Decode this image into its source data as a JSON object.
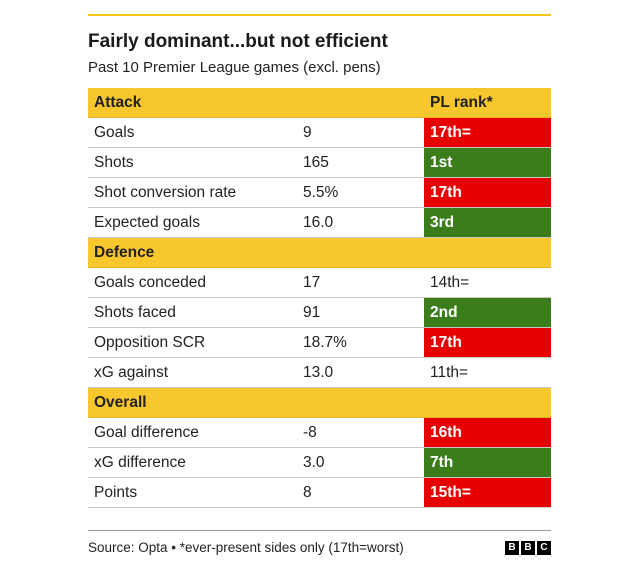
{
  "title": "Fairly dominant...but not efficient",
  "subtitle": "Past 10 Premier League games (excl. pens)",
  "header": {
    "label": "Attack",
    "rank_label": "PL rank*"
  },
  "sections": [
    {
      "name": "Attack",
      "rows": [
        {
          "metric": "Goals",
          "value": "9",
          "rank": "17th=",
          "rank_color": "red"
        },
        {
          "metric": "Shots",
          "value": "165",
          "rank": "1st",
          "rank_color": "green"
        },
        {
          "metric": "Shot conversion rate",
          "value": "5.5%",
          "rank": "17th",
          "rank_color": "red"
        },
        {
          "metric": "Expected goals",
          "value": "16.0",
          "rank": "3rd",
          "rank_color": "green"
        }
      ]
    },
    {
      "name": "Defence",
      "rows": [
        {
          "metric": "Goals conceded",
          "value": "17",
          "rank": "14th=",
          "rank_color": "none"
        },
        {
          "metric": "Shots faced",
          "value": "91",
          "rank": "2nd",
          "rank_color": "green"
        },
        {
          "metric": "Opposition SCR",
          "value": "18.7%",
          "rank": "17th",
          "rank_color": "red"
        },
        {
          "metric": "xG against",
          "value": "13.0",
          "rank": "11th=",
          "rank_color": "none"
        }
      ]
    },
    {
      "name": "Overall",
      "rows": [
        {
          "metric": "Goal difference",
          "value": "-8",
          "rank": "16th",
          "rank_color": "red"
        },
        {
          "metric": "xG difference",
          "value": "3.0",
          "rank": "7th",
          "rank_color": "green"
        },
        {
          "metric": "Points",
          "value": "8",
          "rank": "15th=",
          "rank_color": "red"
        }
      ]
    }
  ],
  "footer": {
    "source": "Source: Opta • *ever-present sides only (17th=worst)",
    "logo_letters": [
      "B",
      "B",
      "C"
    ]
  },
  "colors": {
    "section": "#f8c62d",
    "red": "#e60000",
    "green": "#3a7d1a"
  }
}
